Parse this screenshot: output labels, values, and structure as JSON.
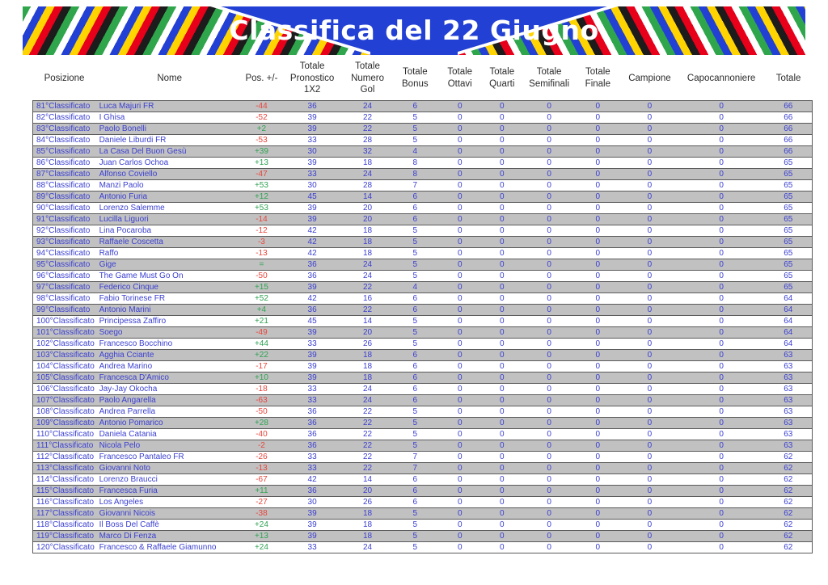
{
  "banner": {
    "title": "Classifica del 22 Giugno",
    "stripe_colors": [
      "#2fa64c",
      "#ffffff",
      "#2240d4",
      "#ffd400",
      "#e8001b",
      "#1c1c1c"
    ]
  },
  "colors": {
    "banner_blue": "#2240d4",
    "text_blue": "#3a3fd1",
    "negative": "#e8453c",
    "positive": "#2fa352",
    "row_gray": "#c1c1c1"
  },
  "table": {
    "columns": [
      "Posizione",
      "Nome",
      "Pos. +/-",
      "Totale Pronostico 1X2",
      "Totale Numero Gol",
      "Totale Bonus",
      "Totale Ottavi",
      "Totale Quarti",
      "Totale Semifinali",
      "Totale Finale",
      "Campione",
      "Capocannoniere",
      "Totale"
    ],
    "rows": [
      {
        "posizione": "81°Classificato",
        "nome": "Luca Majuri FR",
        "pos_change": "-44",
        "pronostico_1x2": 36,
        "numero_gol": 24,
        "bonus": 6,
        "ottavi": 0,
        "quarti": 0,
        "semifinali": 0,
        "finale": 0,
        "campione": 0,
        "capocannoniere": 0,
        "totale": 66
      },
      {
        "posizione": "82°Classificato",
        "nome": "I Ghisa",
        "pos_change": "-52",
        "pronostico_1x2": 39,
        "numero_gol": 22,
        "bonus": 5,
        "ottavi": 0,
        "quarti": 0,
        "semifinali": 0,
        "finale": 0,
        "campione": 0,
        "capocannoniere": 0,
        "totale": 66
      },
      {
        "posizione": "83°Classificato",
        "nome": "Paolo Bonelli",
        "pos_change": "+2",
        "pronostico_1x2": 39,
        "numero_gol": 22,
        "bonus": 5,
        "ottavi": 0,
        "quarti": 0,
        "semifinali": 0,
        "finale": 0,
        "campione": 0,
        "capocannoniere": 0,
        "totale": 66
      },
      {
        "posizione": "84°Classificato",
        "nome": "Daniele Liburdi FR",
        "pos_change": "-53",
        "pronostico_1x2": 33,
        "numero_gol": 28,
        "bonus": 5,
        "ottavi": 0,
        "quarti": 0,
        "semifinali": 0,
        "finale": 0,
        "campione": 0,
        "capocannoniere": 0,
        "totale": 66
      },
      {
        "posizione": "85°Classificato",
        "nome": "La Casa Del Buon Gesù",
        "pos_change": "+39",
        "pronostico_1x2": 30,
        "numero_gol": 32,
        "bonus": 4,
        "ottavi": 0,
        "quarti": 0,
        "semifinali": 0,
        "finale": 0,
        "campione": 0,
        "capocannoniere": 0,
        "totale": 66
      },
      {
        "posizione": "86°Classificato",
        "nome": "Juan Carlos Ochoa",
        "pos_change": "+13",
        "pronostico_1x2": 39,
        "numero_gol": 18,
        "bonus": 8,
        "ottavi": 0,
        "quarti": 0,
        "semifinali": 0,
        "finale": 0,
        "campione": 0,
        "capocannoniere": 0,
        "totale": 65
      },
      {
        "posizione": "87°Classificato",
        "nome": "Alfonso Coviello",
        "pos_change": "-47",
        "pronostico_1x2": 33,
        "numero_gol": 24,
        "bonus": 8,
        "ottavi": 0,
        "quarti": 0,
        "semifinali": 0,
        "finale": 0,
        "campione": 0,
        "capocannoniere": 0,
        "totale": 65
      },
      {
        "posizione": "88°Classificato",
        "nome": "Manzi Paolo",
        "pos_change": "+53",
        "pronostico_1x2": 30,
        "numero_gol": 28,
        "bonus": 7,
        "ottavi": 0,
        "quarti": 0,
        "semifinali": 0,
        "finale": 0,
        "campione": 0,
        "capocannoniere": 0,
        "totale": 65
      },
      {
        "posizione": "89°Classificato",
        "nome": "Antonio Furia",
        "pos_change": "+12",
        "pronostico_1x2": 45,
        "numero_gol": 14,
        "bonus": 6,
        "ottavi": 0,
        "quarti": 0,
        "semifinali": 0,
        "finale": 0,
        "campione": 0,
        "capocannoniere": 0,
        "totale": 65
      },
      {
        "posizione": "90°Classificato",
        "nome": "Lorenzo Salemme",
        "pos_change": "+53",
        "pronostico_1x2": 39,
        "numero_gol": 20,
        "bonus": 6,
        "ottavi": 0,
        "quarti": 0,
        "semifinali": 0,
        "finale": 0,
        "campione": 0,
        "capocannoniere": 0,
        "totale": 65
      },
      {
        "posizione": "91°Classificato",
        "nome": "Lucilla Liguori",
        "pos_change": "-14",
        "pronostico_1x2": 39,
        "numero_gol": 20,
        "bonus": 6,
        "ottavi": 0,
        "quarti": 0,
        "semifinali": 0,
        "finale": 0,
        "campione": 0,
        "capocannoniere": 0,
        "totale": 65
      },
      {
        "posizione": "92°Classificato",
        "nome": "Lina Pocaroba",
        "pos_change": "-12",
        "pronostico_1x2": 42,
        "numero_gol": 18,
        "bonus": 5,
        "ottavi": 0,
        "quarti": 0,
        "semifinali": 0,
        "finale": 0,
        "campione": 0,
        "capocannoniere": 0,
        "totale": 65
      },
      {
        "posizione": "93°Classificato",
        "nome": "Raffaele Coscetta",
        "pos_change": "-3",
        "pronostico_1x2": 42,
        "numero_gol": 18,
        "bonus": 5,
        "ottavi": 0,
        "quarti": 0,
        "semifinali": 0,
        "finale": 0,
        "campione": 0,
        "capocannoniere": 0,
        "totale": 65
      },
      {
        "posizione": "94°Classificato",
        "nome": "Raffo",
        "pos_change": "-13",
        "pronostico_1x2": 42,
        "numero_gol": 18,
        "bonus": 5,
        "ottavi": 0,
        "quarti": 0,
        "semifinali": 0,
        "finale": 0,
        "campione": 0,
        "capocannoniere": 0,
        "totale": 65
      },
      {
        "posizione": "95°Classificato",
        "nome": "Gige",
        "pos_change": "=",
        "pronostico_1x2": 36,
        "numero_gol": 24,
        "bonus": 5,
        "ottavi": 0,
        "quarti": 0,
        "semifinali": 0,
        "finale": 0,
        "campione": 0,
        "capocannoniere": 0,
        "totale": 65
      },
      {
        "posizione": "96°Classificato",
        "nome": "The Game Must Go On",
        "pos_change": "-50",
        "pronostico_1x2": 36,
        "numero_gol": 24,
        "bonus": 5,
        "ottavi": 0,
        "quarti": 0,
        "semifinali": 0,
        "finale": 0,
        "campione": 0,
        "capocannoniere": 0,
        "totale": 65
      },
      {
        "posizione": "97°Classificato",
        "nome": "Federico Cinque",
        "pos_change": "+15",
        "pronostico_1x2": 39,
        "numero_gol": 22,
        "bonus": 4,
        "ottavi": 0,
        "quarti": 0,
        "semifinali": 0,
        "finale": 0,
        "campione": 0,
        "capocannoniere": 0,
        "totale": 65
      },
      {
        "posizione": "98°Classificato",
        "nome": "Fabio Torinese FR",
        "pos_change": "+52",
        "pronostico_1x2": 42,
        "numero_gol": 16,
        "bonus": 6,
        "ottavi": 0,
        "quarti": 0,
        "semifinali": 0,
        "finale": 0,
        "campione": 0,
        "capocannoniere": 0,
        "totale": 64
      },
      {
        "posizione": "99°Classificato",
        "nome": "Antonio Marini",
        "pos_change": "+4",
        "pronostico_1x2": 36,
        "numero_gol": 22,
        "bonus": 6,
        "ottavi": 0,
        "quarti": 0,
        "semifinali": 0,
        "finale": 0,
        "campione": 0,
        "capocannoniere": 0,
        "totale": 64
      },
      {
        "posizione": "100°Classificato",
        "nome": "Principessa Zaffiro",
        "pos_change": "+21",
        "pronostico_1x2": 45,
        "numero_gol": 14,
        "bonus": 5,
        "ottavi": 0,
        "quarti": 0,
        "semifinali": 0,
        "finale": 0,
        "campione": 0,
        "capocannoniere": 0,
        "totale": 64
      },
      {
        "posizione": "101°Classificato",
        "nome": "Soego",
        "pos_change": "-49",
        "pronostico_1x2": 39,
        "numero_gol": 20,
        "bonus": 5,
        "ottavi": 0,
        "quarti": 0,
        "semifinali": 0,
        "finale": 0,
        "campione": 0,
        "capocannoniere": 0,
        "totale": 64
      },
      {
        "posizione": "102°Classificato",
        "nome": "Francesco Bocchino",
        "pos_change": "+44",
        "pronostico_1x2": 33,
        "numero_gol": 26,
        "bonus": 5,
        "ottavi": 0,
        "quarti": 0,
        "semifinali": 0,
        "finale": 0,
        "campione": 0,
        "capocannoniere": 0,
        "totale": 64
      },
      {
        "posizione": "103°Classificato",
        "nome": "Agghia Cciante",
        "pos_change": "+22",
        "pronostico_1x2": 39,
        "numero_gol": 18,
        "bonus": 6,
        "ottavi": 0,
        "quarti": 0,
        "semifinali": 0,
        "finale": 0,
        "campione": 0,
        "capocannoniere": 0,
        "totale": 63
      },
      {
        "posizione": "104°Classificato",
        "nome": "Andrea Marino",
        "pos_change": "-17",
        "pronostico_1x2": 39,
        "numero_gol": 18,
        "bonus": 6,
        "ottavi": 0,
        "quarti": 0,
        "semifinali": 0,
        "finale": 0,
        "campione": 0,
        "capocannoniere": 0,
        "totale": 63
      },
      {
        "posizione": "105°Classificato",
        "nome": "Francesca D'Amico",
        "pos_change": "+10",
        "pronostico_1x2": 39,
        "numero_gol": 18,
        "bonus": 6,
        "ottavi": 0,
        "quarti": 0,
        "semifinali": 0,
        "finale": 0,
        "campione": 0,
        "capocannoniere": 0,
        "totale": 63
      },
      {
        "posizione": "106°Classificato",
        "nome": "Jay-Jay Okocha",
        "pos_change": "-18",
        "pronostico_1x2": 33,
        "numero_gol": 24,
        "bonus": 6,
        "ottavi": 0,
        "quarti": 0,
        "semifinali": 0,
        "finale": 0,
        "campione": 0,
        "capocannoniere": 0,
        "totale": 63
      },
      {
        "posizione": "107°Classificato",
        "nome": "Paolo Angarella",
        "pos_change": "-63",
        "pronostico_1x2": 33,
        "numero_gol": 24,
        "bonus": 6,
        "ottavi": 0,
        "quarti": 0,
        "semifinali": 0,
        "finale": 0,
        "campione": 0,
        "capocannoniere": 0,
        "totale": 63
      },
      {
        "posizione": "108°Classificato",
        "nome": "Andrea Parrella",
        "pos_change": "-50",
        "pronostico_1x2": 36,
        "numero_gol": 22,
        "bonus": 5,
        "ottavi": 0,
        "quarti": 0,
        "semifinali": 0,
        "finale": 0,
        "campione": 0,
        "capocannoniere": 0,
        "totale": 63
      },
      {
        "posizione": "109°Classificato",
        "nome": "Antonio Pomarico",
        "pos_change": "+28",
        "pronostico_1x2": 36,
        "numero_gol": 22,
        "bonus": 5,
        "ottavi": 0,
        "quarti": 0,
        "semifinali": 0,
        "finale": 0,
        "campione": 0,
        "capocannoniere": 0,
        "totale": 63
      },
      {
        "posizione": "110°Classificato",
        "nome": "Daniela Catania",
        "pos_change": "-40",
        "pronostico_1x2": 36,
        "numero_gol": 22,
        "bonus": 5,
        "ottavi": 0,
        "quarti": 0,
        "semifinali": 0,
        "finale": 0,
        "campione": 0,
        "capocannoniere": 0,
        "totale": 63
      },
      {
        "posizione": "111°Classificato",
        "nome": "Nicola Pelo",
        "pos_change": "-2",
        "pronostico_1x2": 36,
        "numero_gol": 22,
        "bonus": 5,
        "ottavi": 0,
        "quarti": 0,
        "semifinali": 0,
        "finale": 0,
        "campione": 0,
        "capocannoniere": 0,
        "totale": 63
      },
      {
        "posizione": "112°Classificato",
        "nome": "Francesco Pantaleo FR",
        "pos_change": "-26",
        "pronostico_1x2": 33,
        "numero_gol": 22,
        "bonus": 7,
        "ottavi": 0,
        "quarti": 0,
        "semifinali": 0,
        "finale": 0,
        "campione": 0,
        "capocannoniere": 0,
        "totale": 62
      },
      {
        "posizione": "113°Classificato",
        "nome": "Giovanni Noto",
        "pos_change": "-13",
        "pronostico_1x2": 33,
        "numero_gol": 22,
        "bonus": 7,
        "ottavi": 0,
        "quarti": 0,
        "semifinali": 0,
        "finale": 0,
        "campione": 0,
        "capocannoniere": 0,
        "totale": 62
      },
      {
        "posizione": "114°Classificato",
        "nome": "Lorenzo Braucci",
        "pos_change": "-67",
        "pronostico_1x2": 42,
        "numero_gol": 14,
        "bonus": 6,
        "ottavi": 0,
        "quarti": 0,
        "semifinali": 0,
        "finale": 0,
        "campione": 0,
        "capocannoniere": 0,
        "totale": 62
      },
      {
        "posizione": "115°Classificato",
        "nome": "Francesca Furia",
        "pos_change": "+11",
        "pronostico_1x2": 36,
        "numero_gol": 20,
        "bonus": 6,
        "ottavi": 0,
        "quarti": 0,
        "semifinali": 0,
        "finale": 0,
        "campione": 0,
        "capocannoniere": 0,
        "totale": 62
      },
      {
        "posizione": "116°Classificato",
        "nome": "Los Angeles",
        "pos_change": "-27",
        "pronostico_1x2": 30,
        "numero_gol": 26,
        "bonus": 6,
        "ottavi": 0,
        "quarti": 0,
        "semifinali": 0,
        "finale": 0,
        "campione": 0,
        "capocannoniere": 0,
        "totale": 62
      },
      {
        "posizione": "117°Classificato",
        "nome": "Giovanni Nicois",
        "pos_change": "-38",
        "pronostico_1x2": 39,
        "numero_gol": 18,
        "bonus": 5,
        "ottavi": 0,
        "quarti": 0,
        "semifinali": 0,
        "finale": 0,
        "campione": 0,
        "capocannoniere": 0,
        "totale": 62
      },
      {
        "posizione": "118°Classificato",
        "nome": "Il Boss Del Caffè",
        "pos_change": "+24",
        "pronostico_1x2": 39,
        "numero_gol": 18,
        "bonus": 5,
        "ottavi": 0,
        "quarti": 0,
        "semifinali": 0,
        "finale": 0,
        "campione": 0,
        "capocannoniere": 0,
        "totale": 62
      },
      {
        "posizione": "119°Classificato",
        "nome": "Marco Di Fenza",
        "pos_change": "+13",
        "pronostico_1x2": 39,
        "numero_gol": 18,
        "bonus": 5,
        "ottavi": 0,
        "quarti": 0,
        "semifinali": 0,
        "finale": 0,
        "campione": 0,
        "capocannoniere": 0,
        "totale": 62
      },
      {
        "posizione": "120°Classificato",
        "nome": "Francesco & Raffaele Giamunno",
        "pos_change": "+24",
        "pronostico_1x2": 33,
        "numero_gol": 24,
        "bonus": 5,
        "ottavi": 0,
        "quarti": 0,
        "semifinali": 0,
        "finale": 0,
        "campione": 0,
        "capocannoniere": 0,
        "totale": 62
      }
    ]
  }
}
